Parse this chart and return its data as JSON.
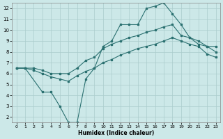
{
  "xlabel": "Humidex (Indice chaleur)",
  "bg_color": "#cce8e8",
  "grid_color": "#aacccc",
  "line_color": "#2a7070",
  "xlim": [
    -0.5,
    23.5
  ],
  "ylim": [
    1.5,
    12.5
  ],
  "xticks": [
    0,
    1,
    2,
    3,
    4,
    5,
    6,
    7,
    8,
    9,
    10,
    11,
    12,
    13,
    14,
    15,
    16,
    17,
    18,
    19,
    20,
    21,
    22,
    23
  ],
  "yticks": [
    2,
    3,
    4,
    5,
    6,
    7,
    8,
    9,
    10,
    11,
    12
  ],
  "line1_x": [
    0,
    1,
    3,
    4,
    5,
    6,
    7,
    8,
    9,
    10,
    11,
    12,
    13,
    14,
    15,
    16,
    17,
    18,
    19,
    20,
    21,
    22,
    23
  ],
  "line1_y": [
    6.5,
    6.5,
    4.3,
    4.3,
    3.0,
    1.5,
    1.5,
    5.5,
    6.5,
    8.5,
    9.0,
    10.5,
    10.5,
    10.5,
    12.0,
    12.2,
    12.5,
    11.5,
    10.5,
    9.3,
    8.7,
    8.5,
    8.5
  ],
  "line2_x": [
    0,
    1,
    2,
    3,
    4,
    5,
    6,
    7,
    8,
    9,
    10,
    11,
    12,
    13,
    14,
    15,
    16,
    17,
    18,
    19,
    20,
    21,
    22,
    23
  ],
  "line2_y": [
    6.5,
    6.5,
    6.5,
    6.3,
    6.0,
    6.0,
    6.0,
    6.5,
    7.2,
    7.5,
    8.3,
    8.7,
    9.0,
    9.3,
    9.5,
    9.8,
    10.0,
    10.3,
    10.5,
    9.5,
    9.3,
    9.0,
    8.5,
    8.0
  ],
  "line3_x": [
    0,
    1,
    2,
    3,
    4,
    5,
    6,
    7,
    8,
    9,
    10,
    11,
    12,
    13,
    14,
    15,
    16,
    17,
    18,
    19,
    20,
    21,
    22,
    23
  ],
  "line3_y": [
    6.5,
    6.5,
    6.3,
    6.0,
    5.7,
    5.5,
    5.3,
    5.8,
    6.2,
    6.5,
    7.0,
    7.3,
    7.7,
    8.0,
    8.3,
    8.5,
    8.7,
    9.0,
    9.3,
    9.0,
    8.7,
    8.5,
    7.8,
    7.5
  ]
}
